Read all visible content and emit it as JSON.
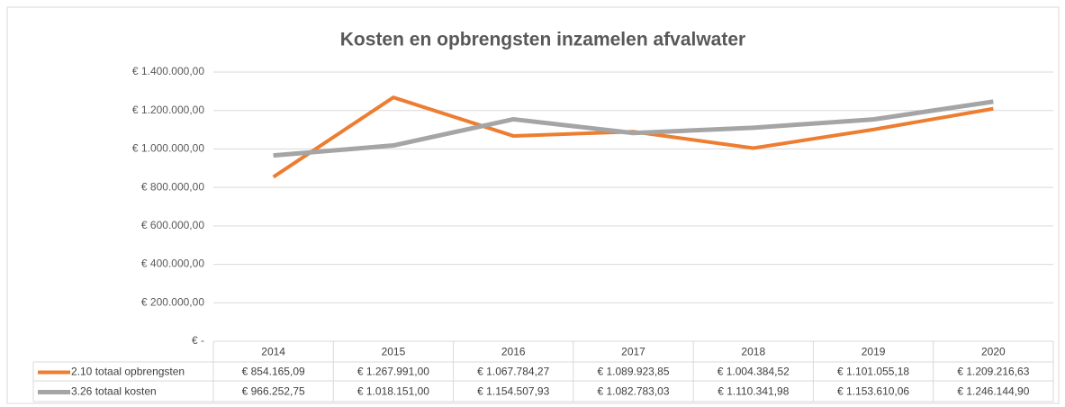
{
  "chart_data": {
    "type": "line",
    "title": "Kosten en opbrengsten inzamelen afvalwater",
    "categories": [
      "2014",
      "2015",
      "2016",
      "2017",
      "2018",
      "2019",
      "2020"
    ],
    "series": [
      {
        "name": "2.10 totaal opbrengsten",
        "color": "#ed7d31",
        "values": [
          854165.09,
          1267991.0,
          1067784.27,
          1089923.85,
          1004384.52,
          1101055.18,
          1209216.63
        ],
        "value_labels": [
          "€ 854.165,09",
          "€ 1.267.991,00",
          "€ 1.067.784,27",
          "€ 1.089.923,85",
          "€ 1.004.384,52",
          "€ 1.101.055,18",
          "€ 1.209.216,63"
        ]
      },
      {
        "name": "3.26 totaal kosten",
        "color": "#a5a5a5",
        "values": [
          966252.75,
          1018151.0,
          1154507.93,
          1082783.03,
          1110341.98,
          1153610.06,
          1246144.9
        ],
        "value_labels": [
          "€ 966.252,75",
          "€ 1.018.151,00",
          "€ 1.154.507,93",
          "€ 1.082.783,03",
          "€ 1.110.341,98",
          "€ 1.153.610,06",
          "€ 1.246.144,90"
        ]
      }
    ],
    "ylim": [
      0,
      1400000
    ],
    "yticks": [
      {
        "value": 0,
        "label": "€ -"
      },
      {
        "value": 200000,
        "label": "€ 200.000,00"
      },
      {
        "value": 400000,
        "label": "€ 400.000,00"
      },
      {
        "value": 600000,
        "label": "€ 600.000,00"
      },
      {
        "value": 800000,
        "label": "€ 800.000,00"
      },
      {
        "value": 1000000,
        "label": "€ 1.000.000,00"
      },
      {
        "value": 1200000,
        "label": "€ 1.200.000,00"
      },
      {
        "value": 1400000,
        "label": "€ 1.400.000,00"
      }
    ],
    "grid": true
  }
}
